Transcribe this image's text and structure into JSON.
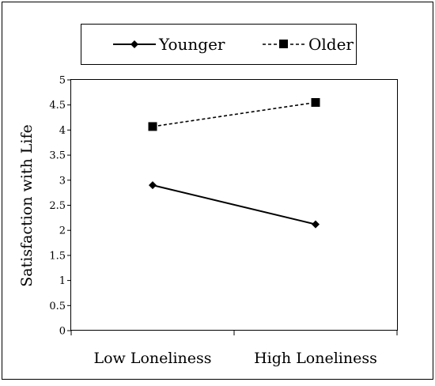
{
  "chart_data": {
    "type": "line",
    "title": "",
    "xlabel": "",
    "ylabel": "Satisfaction with Life",
    "categories": [
      "Low Loneliness",
      "High Loneliness"
    ],
    "ylim": [
      0,
      5
    ],
    "yticks": [
      "0",
      "0.5",
      "1",
      "1.5",
      "2",
      "2.5",
      "3",
      "3.5",
      "4",
      "4.5",
      "5"
    ],
    "grid": false,
    "legend_position": "top",
    "series": [
      {
        "name": "Younger",
        "values": [
          2.9,
          2.12
        ],
        "marker": "diamond",
        "line_style": "solid",
        "color": "#000000"
      },
      {
        "name": "Older",
        "values": [
          4.07,
          4.55
        ],
        "marker": "square",
        "line_style": "dashed",
        "color": "#000000"
      }
    ]
  }
}
